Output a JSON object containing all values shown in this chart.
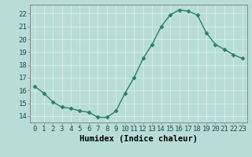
{
  "x": [
    0,
    1,
    2,
    3,
    4,
    5,
    6,
    7,
    8,
    9,
    10,
    11,
    12,
    13,
    14,
    15,
    16,
    17,
    18,
    19,
    20,
    21,
    22,
    23
  ],
  "y": [
    16.3,
    15.8,
    15.1,
    14.7,
    14.6,
    14.4,
    14.3,
    13.9,
    13.9,
    14.4,
    15.8,
    17.0,
    18.5,
    19.6,
    21.0,
    21.9,
    22.3,
    22.2,
    21.9,
    20.5,
    19.6,
    19.2,
    18.8,
    18.5
  ],
  "line_color": "#2e7d6e",
  "marker": "D",
  "marker_size": 2.5,
  "bg_color": "#b8ddd8",
  "grid_color": "#d8eeea",
  "xlabel": "Humidex (Indice chaleur)",
  "ylim": [
    13.5,
    22.7
  ],
  "xlim": [
    -0.5,
    23.5
  ],
  "yticks": [
    14,
    15,
    16,
    17,
    18,
    19,
    20,
    21,
    22
  ],
  "xticks": [
    0,
    1,
    2,
    3,
    4,
    5,
    6,
    7,
    8,
    9,
    10,
    11,
    12,
    13,
    14,
    15,
    16,
    17,
    18,
    19,
    20,
    21,
    22,
    23
  ],
  "tick_label_size": 6.5,
  "xlabel_size": 7.5,
  "line_width": 1.0,
  "spine_color": "#888888"
}
